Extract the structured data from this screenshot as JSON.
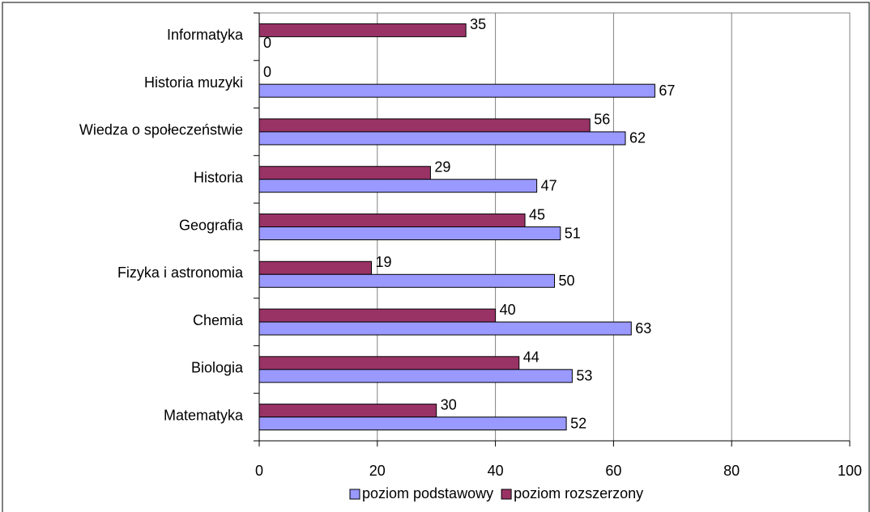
{
  "chart_data": {
    "type": "bar",
    "orientation": "horizontal",
    "categories": [
      "Informatyka",
      "Historia  muzyki",
      "Wiedza o społeczeństwie",
      "Historia",
      "Geografia",
      "Fizyka i astronomia",
      "Chemia",
      "Biologia",
      "Matematyka"
    ],
    "series": [
      {
        "name": "poziom podstawowy",
        "color": "#9999ff",
        "values": [
          0,
          67,
          62,
          47,
          51,
          50,
          63,
          53,
          52
        ]
      },
      {
        "name": "poziom rozszerzony",
        "color": "#993366",
        "values": [
          35,
          0,
          56,
          29,
          45,
          19,
          40,
          44,
          30
        ]
      }
    ],
    "xlim": [
      0,
      100
    ],
    "xticks": [
      0,
      20,
      40,
      60,
      80,
      100
    ],
    "grid": true,
    "legend": "bottom"
  }
}
